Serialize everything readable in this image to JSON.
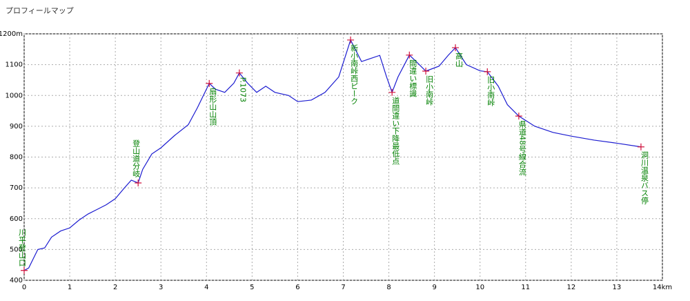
{
  "chart_data": {
    "type": "line",
    "title": "プロフィールマップ",
    "x": [
      0,
      0.1,
      0.2,
      0.3,
      0.45,
      0.6,
      0.8,
      1.0,
      1.2,
      1.4,
      1.6,
      1.8,
      2.0,
      2.2,
      2.35,
      2.5,
      2.6,
      2.8,
      3.0,
      3.3,
      3.6,
      3.8,
      4.06,
      4.2,
      4.4,
      4.6,
      4.72,
      4.9,
      5.1,
      5.3,
      5.5,
      5.8,
      6.0,
      6.3,
      6.6,
      6.9,
      7.16,
      7.4,
      7.6,
      7.8,
      7.95,
      8.07,
      8.2,
      8.45,
      8.6,
      8.81,
      9.1,
      9.3,
      9.46,
      9.7,
      10.0,
      10.16,
      10.4,
      10.6,
      10.85,
      11.2,
      11.6,
      12.0,
      12.5,
      13.0,
      13.53
    ],
    "series": [
      {
        "color": "#1a1ad0",
        "values": [
          432,
          440,
          470,
          500,
          505,
          540,
          560,
          570,
          595,
          615,
          630,
          645,
          665,
          700,
          725,
          716,
          760,
          810,
          830,
          870,
          905,
          960,
          1039,
          1020,
          1010,
          1040,
          1073,
          1040,
          1010,
          1030,
          1010,
          1000,
          980,
          985,
          1010,
          1060,
          1180,
          1110,
          1120,
          1130,
          1060,
          1010,
          1060,
          1131,
          1110,
          1079,
          1095,
          1130,
          1155,
          1100,
          1080,
          1077,
          1030,
          970,
          933,
          900,
          880,
          868,
          855,
          845,
          833
        ]
      }
    ],
    "waypoints": {
      "color": "#d0103a",
      "label_color": "#008000",
      "labels": [
        "川平登山口",
        "登山道分岐",
        "扇形山山頂",
        "P.1073",
        "新小南峠西ピーク",
        "道間違い下降最低点",
        "間違い標識",
        "旧小南峠",
        "高山",
        "旧小南峠",
        "県道48号線合流",
        "洞川温泉バス停"
      ],
      "x": [
        0,
        2.5,
        4.06,
        4.72,
        7.16,
        8.07,
        8.45,
        8.81,
        9.46,
        10.16,
        10.85,
        13.53
      ],
      "values": [
        432,
        716,
        1039,
        1073,
        1180,
        1010,
        1131,
        1079,
        1155,
        1077,
        933,
        833
      ]
    },
    "xlim": [
      0,
      14
    ],
    "xticks": [
      0,
      1,
      2,
      3,
      4,
      5,
      6,
      7,
      8,
      9,
      10,
      11,
      12,
      13,
      {
        "value": 14,
        "label": "14km"
      }
    ],
    "ylim": [
      400,
      1200
    ],
    "yticks": [
      400,
      500,
      600,
      700,
      800,
      900,
      1000,
      1100,
      {
        "value": 1200,
        "label": "1200m"
      }
    ],
    "grid": true
  }
}
